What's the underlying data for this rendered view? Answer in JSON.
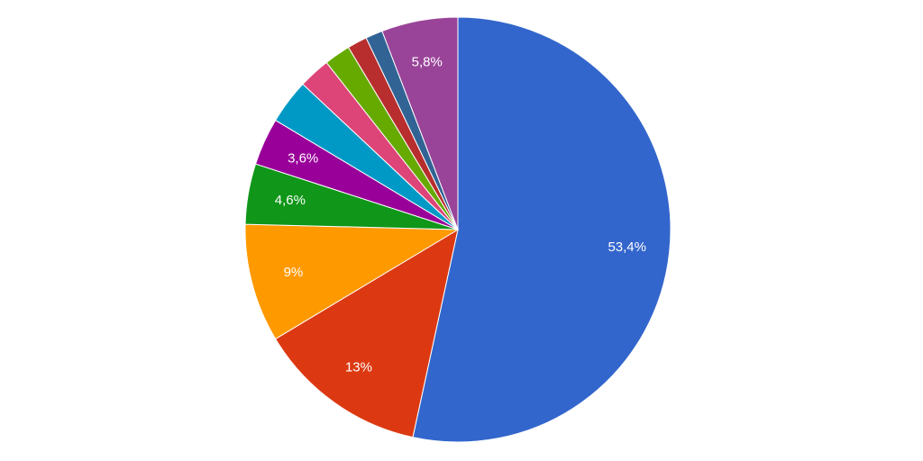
{
  "chart_data": {
    "type": "pie",
    "values": [
      53.4,
      13,
      9,
      4.6,
      3.6,
      3.4,
      2.4,
      2.0,
      1.5,
      1.3,
      5.8
    ],
    "value_labels": [
      "53,4%",
      "13%",
      "9%",
      "4,6%",
      "3,6%",
      null,
      null,
      null,
      null,
      null,
      "5,8%"
    ],
    "colors": [
      "#3366cc",
      "#dc3912",
      "#ff9900",
      "#109618",
      "#990099",
      "#0099c6",
      "#dd4477",
      "#66aa00",
      "#b82e2e",
      "#316395",
      "#994499"
    ]
  }
}
